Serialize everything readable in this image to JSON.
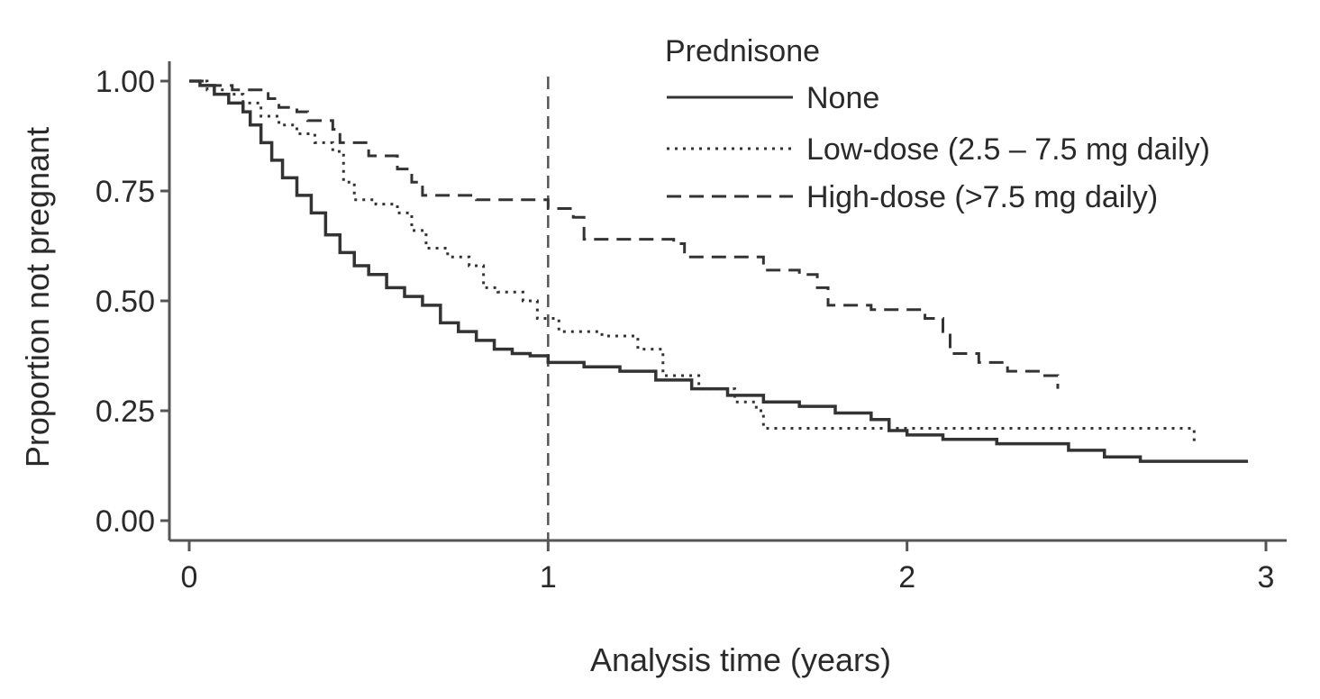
{
  "chart_data": {
    "type": "line",
    "subtype": "step",
    "xlabel": "Analysis time (years)",
    "ylabel": "Proportion not pregnant",
    "xlim": [
      0,
      3
    ],
    "ylim": [
      0,
      1
    ],
    "x_ticks": [
      "0",
      "1",
      "2",
      "3"
    ],
    "y_ticks": [
      "0.00",
      "0.25",
      "0.50",
      "0.75",
      "1.00"
    ],
    "grid": false,
    "reference_line": {
      "axis": "x",
      "value": 1,
      "style": "dashed"
    },
    "legend": {
      "title": "Prednisone",
      "placement": "top-right"
    },
    "series": [
      {
        "name": "None",
        "style": "solid",
        "color": "#333333",
        "points": [
          [
            0,
            1.0
          ],
          [
            0.03,
            0.99
          ],
          [
            0.07,
            0.97
          ],
          [
            0.11,
            0.95
          ],
          [
            0.15,
            0.93
          ],
          [
            0.17,
            0.9
          ],
          [
            0.2,
            0.86
          ],
          [
            0.23,
            0.82
          ],
          [
            0.26,
            0.78
          ],
          [
            0.3,
            0.74
          ],
          [
            0.34,
            0.7
          ],
          [
            0.38,
            0.65
          ],
          [
            0.42,
            0.61
          ],
          [
            0.46,
            0.58
          ],
          [
            0.5,
            0.56
          ],
          [
            0.55,
            0.53
          ],
          [
            0.6,
            0.51
          ],
          [
            0.65,
            0.49
          ],
          [
            0.7,
            0.45
          ],
          [
            0.75,
            0.43
          ],
          [
            0.8,
            0.41
          ],
          [
            0.85,
            0.39
          ],
          [
            0.9,
            0.38
          ],
          [
            0.95,
            0.375
          ],
          [
            1.0,
            0.36
          ],
          [
            1.1,
            0.35
          ],
          [
            1.2,
            0.34
          ],
          [
            1.3,
            0.32
          ],
          [
            1.4,
            0.3
          ],
          [
            1.5,
            0.285
          ],
          [
            1.6,
            0.27
          ],
          [
            1.7,
            0.26
          ],
          [
            1.8,
            0.245
          ],
          [
            1.9,
            0.23
          ],
          [
            1.95,
            0.205
          ],
          [
            2.0,
            0.195
          ],
          [
            2.1,
            0.185
          ],
          [
            2.25,
            0.175
          ],
          [
            2.45,
            0.16
          ],
          [
            2.55,
            0.145
          ],
          [
            2.65,
            0.135
          ],
          [
            2.95,
            0.135
          ]
        ]
      },
      {
        "name": "Low-dose (2.5 – 7.5 mg daily)",
        "style": "dotted",
        "color": "#333333",
        "points": [
          [
            0,
            1.0
          ],
          [
            0.05,
            0.98
          ],
          [
            0.1,
            0.97
          ],
          [
            0.15,
            0.95
          ],
          [
            0.2,
            0.92
          ],
          [
            0.25,
            0.9
          ],
          [
            0.3,
            0.88
          ],
          [
            0.35,
            0.86
          ],
          [
            0.4,
            0.84
          ],
          [
            0.43,
            0.77
          ],
          [
            0.46,
            0.73
          ],
          [
            0.52,
            0.72
          ],
          [
            0.58,
            0.7
          ],
          [
            0.62,
            0.66
          ],
          [
            0.66,
            0.62
          ],
          [
            0.72,
            0.6
          ],
          [
            0.78,
            0.58
          ],
          [
            0.82,
            0.53
          ],
          [
            0.86,
            0.52
          ],
          [
            0.93,
            0.5
          ],
          [
            0.97,
            0.46
          ],
          [
            1.03,
            0.43
          ],
          [
            1.15,
            0.42
          ],
          [
            1.25,
            0.39
          ],
          [
            1.32,
            0.33
          ],
          [
            1.42,
            0.3
          ],
          [
            1.52,
            0.27
          ],
          [
            1.58,
            0.25
          ],
          [
            1.6,
            0.21
          ],
          [
            2.8,
            0.21
          ],
          [
            2.8,
            0.18
          ]
        ]
      },
      {
        "name": "High-dose (>7.5 mg daily)",
        "style": "dashed",
        "color": "#333333",
        "points": [
          [
            0,
            1.0
          ],
          [
            0.05,
            0.99
          ],
          [
            0.12,
            0.98
          ],
          [
            0.22,
            0.96
          ],
          [
            0.25,
            0.94
          ],
          [
            0.3,
            0.93
          ],
          [
            0.33,
            0.91
          ],
          [
            0.4,
            0.89
          ],
          [
            0.42,
            0.86
          ],
          [
            0.5,
            0.83
          ],
          [
            0.58,
            0.8
          ],
          [
            0.62,
            0.77
          ],
          [
            0.65,
            0.74
          ],
          [
            0.8,
            0.73
          ],
          [
            1.0,
            0.71
          ],
          [
            1.07,
            0.69
          ],
          [
            1.1,
            0.64
          ],
          [
            1.35,
            0.63
          ],
          [
            1.38,
            0.6
          ],
          [
            1.55,
            0.6
          ],
          [
            1.6,
            0.57
          ],
          [
            1.7,
            0.56
          ],
          [
            1.75,
            0.53
          ],
          [
            1.78,
            0.49
          ],
          [
            1.9,
            0.48
          ],
          [
            2.05,
            0.46
          ],
          [
            2.1,
            0.43
          ],
          [
            2.12,
            0.38
          ],
          [
            2.2,
            0.36
          ],
          [
            2.28,
            0.34
          ],
          [
            2.38,
            0.33
          ],
          [
            2.42,
            0.3
          ]
        ]
      }
    ]
  }
}
